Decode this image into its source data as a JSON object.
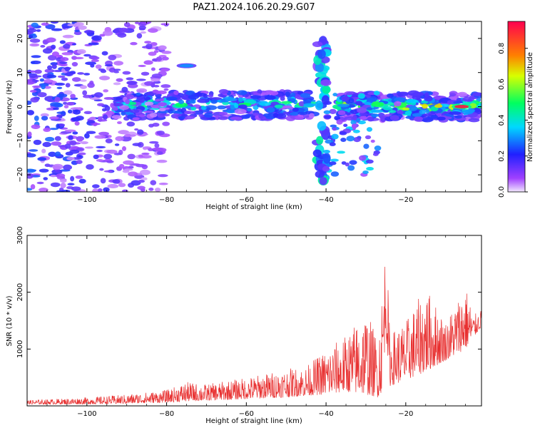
{
  "title": "PAZ1.2024.106.20.29.G07",
  "chart_data": [
    {
      "type": "heatmap",
      "xlabel": "Height of straight line (km)",
      "ylabel": "Frequency (Hz)",
      "xlim": [
        -115,
        -1
      ],
      "ylim": [
        -25,
        25
      ],
      "xticks": [
        -100,
        -80,
        -60,
        -40,
        -20
      ],
      "yticks": [
        -20,
        -10,
        0,
        10,
        20
      ],
      "colorbar": {
        "label": "Normalized spectral amplitude",
        "range": [
          0,
          0.95
        ],
        "ticks": [
          0.0,
          0.2,
          0.4,
          0.6,
          0.8
        ],
        "colormap": "gist_rainbow_r"
      },
      "features": [
        {
          "kind": "band",
          "x0": -93,
          "x1": -43,
          "y": 0.5,
          "strength": 0.35
        },
        {
          "kind": "band",
          "x0": -37,
          "x1": -1,
          "y": 0.0,
          "strength": 0.55
        },
        {
          "kind": "spike",
          "x": -41,
          "y0": -22,
          "y1": 22,
          "strength": 0.35
        },
        {
          "kind": "peak",
          "x": -6,
          "y": 0.0,
          "strength": 0.92
        },
        {
          "kind": "peak",
          "x": -75,
          "y": 12,
          "strength": 0.3
        },
        {
          "kind": "noise",
          "x0": -115,
          "x1": -80,
          "y0": -25,
          "y1": 25,
          "strength": 0.25
        }
      ]
    },
    {
      "type": "line",
      "xlabel": "Height of straight line (km)",
      "ylabel": "SNR (10 * v/v)",
      "xlim": [
        -115,
        -1
      ],
      "ylim": [
        0,
        3000
      ],
      "xticks": [
        -100,
        -80,
        -60,
        -40,
        -20
      ],
      "yticks": [
        1000,
        2000,
        3000
      ],
      "series": [
        {
          "color": "#e83030",
          "envelope_x": [
            -115,
            -100,
            -90,
            -80,
            -75,
            -70,
            -60,
            -50,
            -45,
            -40,
            -35,
            -30,
            -27,
            -26,
            -25,
            -24,
            -20,
            -15,
            -10,
            -5,
            -3,
            -1
          ],
          "envelope_max": [
            100,
            150,
            200,
            280,
            420,
            380,
            500,
            650,
            700,
            1000,
            1250,
            1700,
            1200,
            2000,
            3000,
            1300,
            1500,
            2100,
            1500,
            2150,
            1600,
            1700
          ],
          "envelope_min": [
            30,
            30,
            40,
            60,
            80,
            90,
            120,
            150,
            180,
            200,
            250,
            200,
            150,
            250,
            1300,
            350,
            450,
            600,
            800,
            1000,
            1200,
            1400
          ]
        }
      ]
    }
  ]
}
